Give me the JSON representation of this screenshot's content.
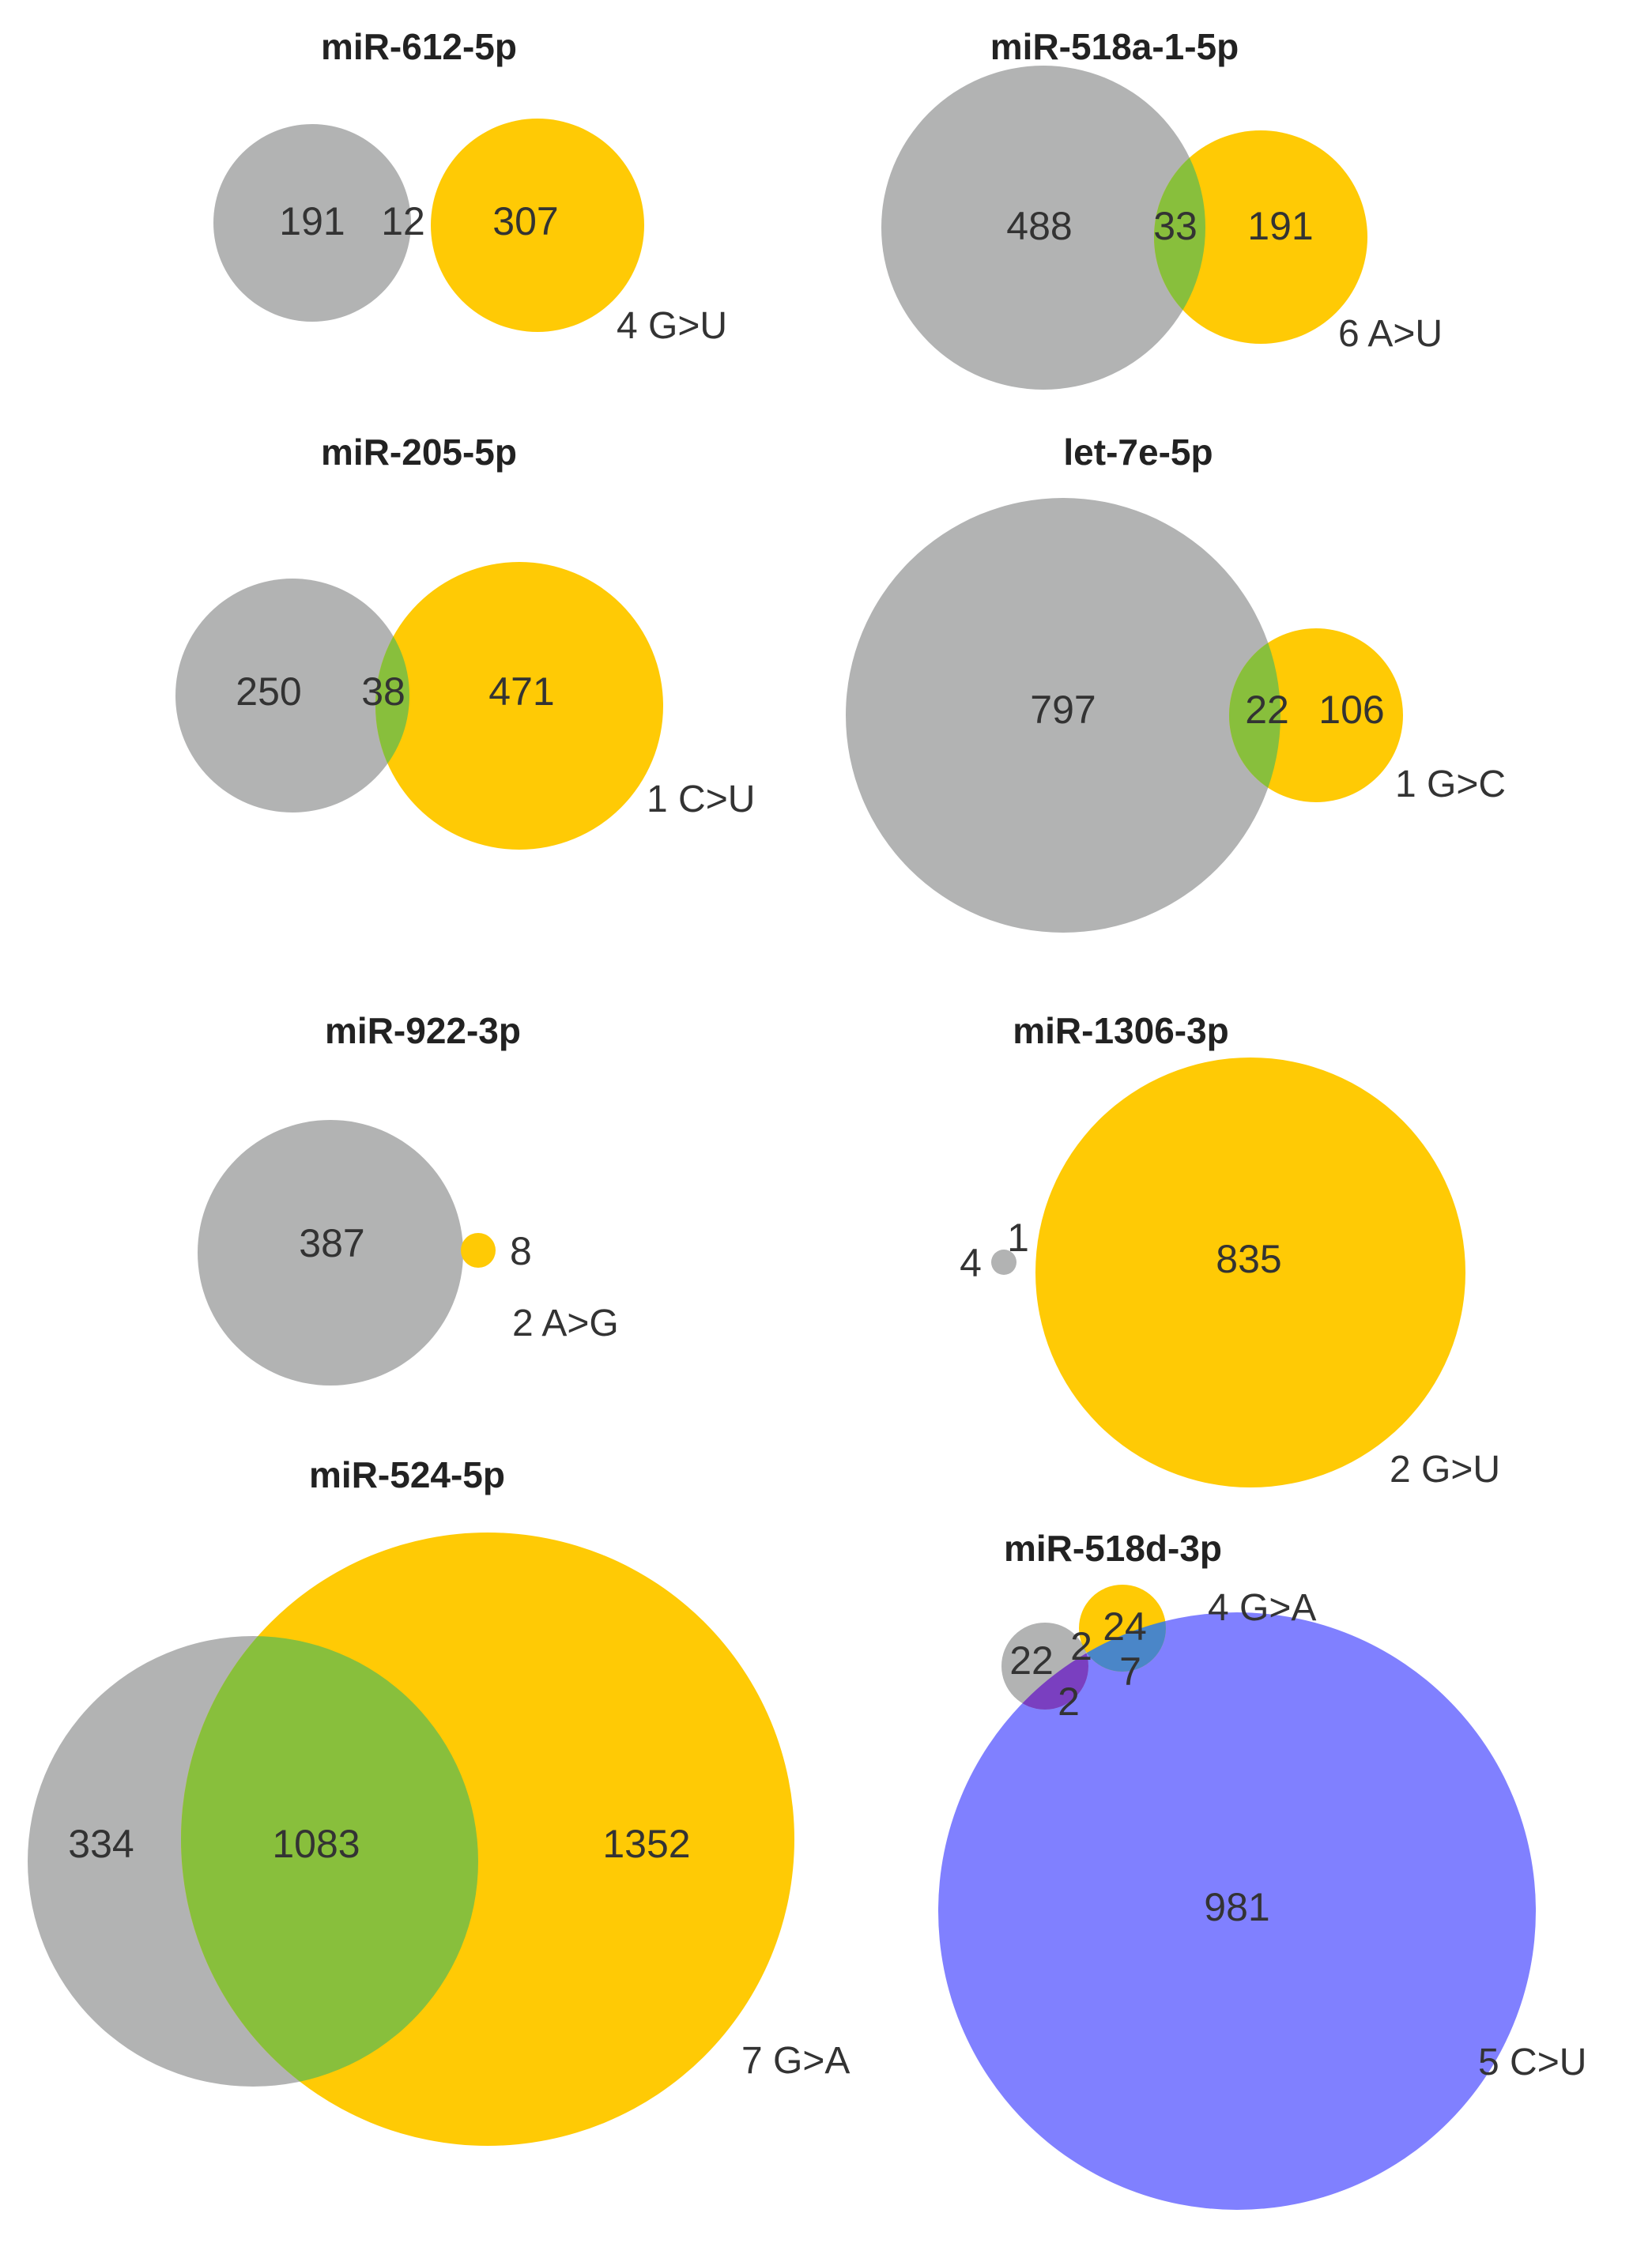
{
  "colors": {
    "gray": "#b2b3b3",
    "yellow": "#ffca05",
    "green": "#88bf3c",
    "blue": "#8080ff",
    "overlap_blue": "#4a86c8",
    "overlap_purple": "#7a3fc0"
  },
  "panels": [
    {
      "title": "miR-612-5p",
      "labels": {
        "gray_only": "191",
        "overlap": "12",
        "yellow_only": "307"
      },
      "mutation": "4 G>U"
    },
    {
      "title": "miR-518a-1-5p",
      "labels": {
        "gray_only": "488",
        "overlap": "33",
        "yellow_only": "191"
      },
      "mutation": "6 A>U"
    },
    {
      "title": "miR-205-5p",
      "labels": {
        "gray_only": "250",
        "overlap": "38",
        "yellow_only": "471"
      },
      "mutation": "1 C>U"
    },
    {
      "title": "let-7e-5p",
      "labels": {
        "gray_only": "797",
        "overlap": "22",
        "yellow_only": "106"
      },
      "mutation": "1 G>C"
    },
    {
      "title": "miR-922-3p",
      "labels": {
        "gray_only": "387",
        "yellow_only": "8"
      },
      "mutation": "2 A>G"
    },
    {
      "title": "miR-1306-3p",
      "labels": {
        "gray_only": "4",
        "overlap": "1",
        "yellow_only": "835"
      },
      "mutation": "2 G>U"
    },
    {
      "title": "miR-524-5p",
      "labels": {
        "gray_only": "334",
        "overlap": "1083",
        "yellow_only": "1352"
      },
      "mutation": "7 G>A"
    },
    {
      "title": "miR-518d-3p",
      "labels": {
        "gray_only": "22",
        "gray_yellow": "2",
        "yellow_only": "24",
        "yellow_blue": "7",
        "gray_blue": "2",
        "blue_only": "981"
      },
      "mutation_yellow": "4 G>A",
      "mutation_blue": "5 C>U"
    }
  ]
}
